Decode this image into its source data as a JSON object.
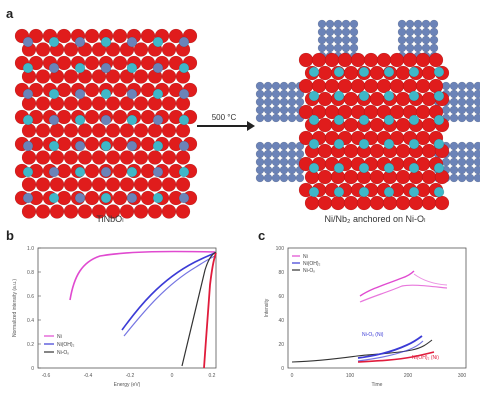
{
  "figure": {
    "panel_a": {
      "letter": "a",
      "left_caption": "TiNbOₗ",
      "right_caption": "Ni/Nb₂ anchored on Ni-Oₗ",
      "arrow_label": "500 °C",
      "colors": {
        "red": "#e01c1c",
        "cyan": "#3fb7c8",
        "blue_gray": "#6b83b8"
      }
    },
    "panel_b": {
      "letter": "b",
      "ylabel": "Normalized intensity (a.u.)",
      "xlabel": "Energy (eV)",
      "xticks": [
        "-0.6",
        "-0.4",
        "-0.2",
        "0",
        "0.2"
      ],
      "yticks": [
        "1.0",
        "0.8",
        "0.6",
        "0.4",
        "0.2",
        "0"
      ],
      "legend": [
        "Ni",
        "Ni(OH)₂",
        "Ni-Oₓ"
      ]
    },
    "panel_c": {
      "letter": "c",
      "ylabel": "Intensity",
      "xlabel": "Time",
      "yticks": [
        "100",
        "80",
        "60",
        "40",
        "20",
        "0"
      ],
      "xticks": [
        "0",
        "100",
        "200",
        "300"
      ],
      "legend": [
        "Ni",
        "Ni(OH)₂",
        "Ni-Oₓ"
      ],
      "annotations": [
        "Ni-Oₓ (Ni)",
        "Ni(OH)₂ (Ni)"
      ]
    },
    "chart_colors": {
      "pink": "#e04ad0",
      "blue": "#3b3bd6",
      "red": "#e01c3c",
      "black": "#222222"
    }
  }
}
